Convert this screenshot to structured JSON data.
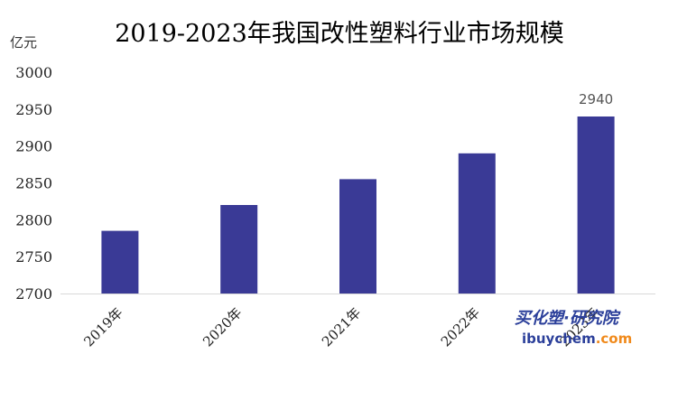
{
  "chart_data": {
    "type": "bar",
    "title": "2019-2023年我国改性塑料行业市场规模",
    "ylabel": "亿元",
    "xlabel": "",
    "categories": [
      "2019年",
      "2020年",
      "2021年",
      "2022年",
      "2023年"
    ],
    "values": [
      2785,
      2820,
      2855,
      2890,
      2940
    ],
    "data_labels": [
      "",
      "",
      "",
      "",
      "2940"
    ],
    "ylim": [
      2700,
      3000
    ],
    "yticks": [
      2700,
      2750,
      2800,
      2850,
      2900,
      2950,
      3000
    ],
    "grid": false,
    "legend": "none",
    "bar_color": "#3a3a96",
    "axis_color": "#d9d9d9"
  },
  "watermark": {
    "line1": "买化塑·研究院",
    "line2_prefix": "ibuychem",
    "line2_suffix": ".com",
    "color_primary": "#2b3f9a",
    "color_accent": "#f08a1c"
  }
}
